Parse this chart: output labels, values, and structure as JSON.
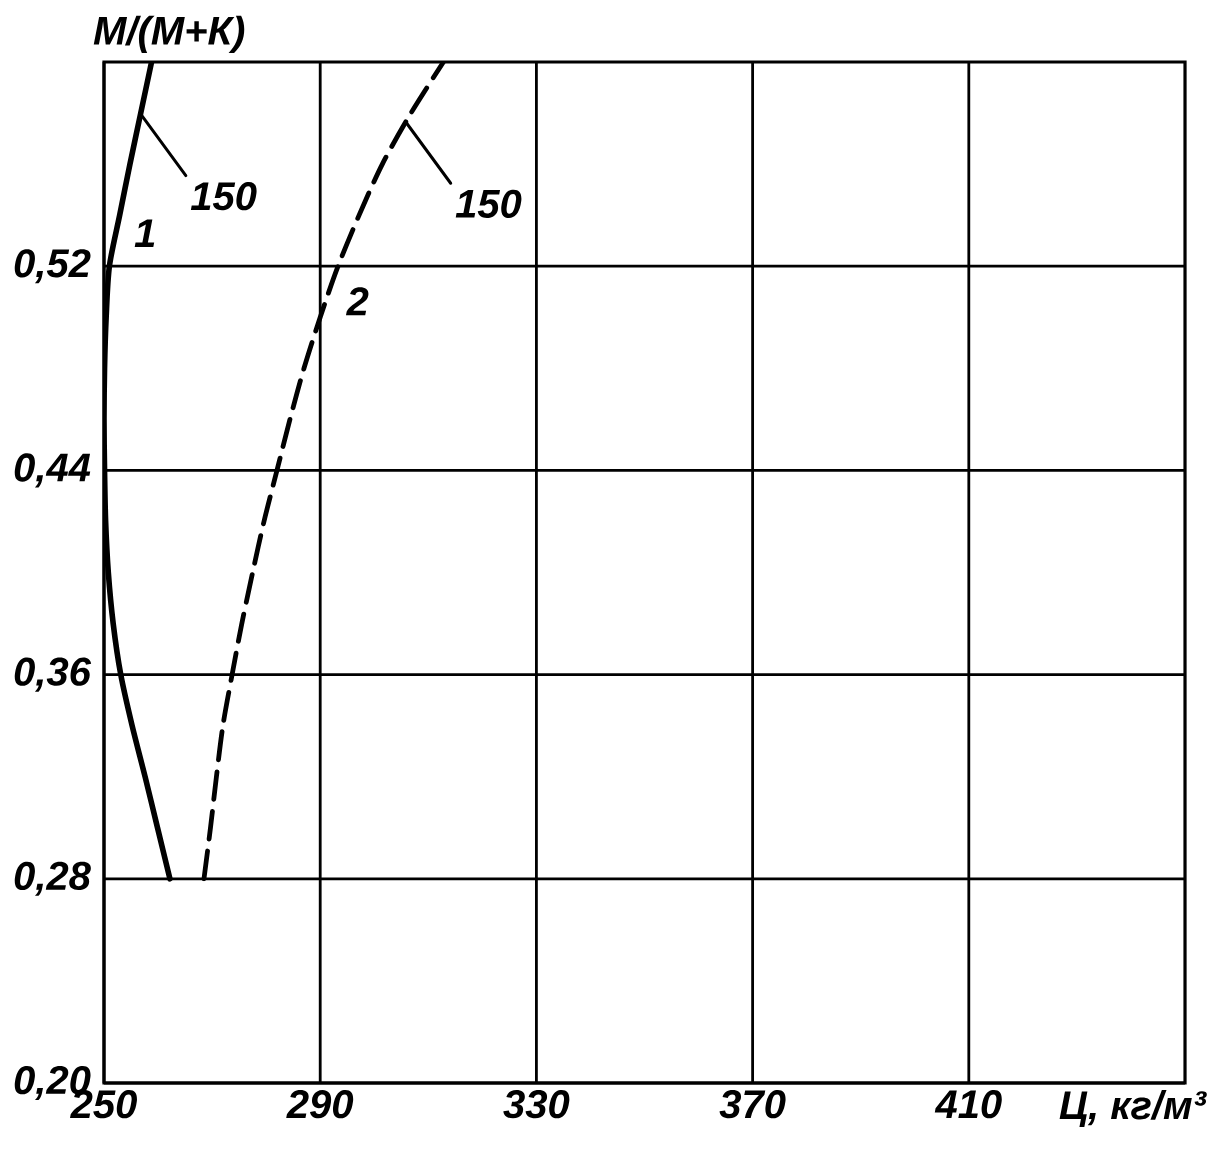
{
  "chart_data": {
    "type": "line",
    "xlabel": "Ц, кг/м³",
    "ylabel": "М/(М+К)",
    "xlim": [
      250,
      450
    ],
    "ylim": [
      0.2,
      0.6
    ],
    "xticks": [
      250,
      290,
      330,
      370,
      410
    ],
    "yticks": [
      {
        "value": 0.2,
        "label": "0,20"
      },
      {
        "value": 0.28,
        "label": "0,28"
      },
      {
        "value": 0.36,
        "label": "0,36"
      },
      {
        "value": 0.44,
        "label": "0,44"
      },
      {
        "value": 0.52,
        "label": "0,52"
      }
    ],
    "grid": true,
    "series": [
      {
        "name": "1",
        "color": "#000000",
        "line_style": "solid",
        "x": [
          262.2,
          259.9,
          257.6,
          255.2,
          253.1,
          251.7,
          250.8,
          250.3,
          250.1,
          250,
          250.1,
          250.4,
          251,
          252.9,
          254.8,
          256.8,
          258.8
        ],
        "values": [
          0.28,
          0.3,
          0.32,
          0.34,
          0.36,
          0.38,
          0.4,
          0.42,
          0.44,
          0.46,
          0.48,
          0.5,
          0.52,
          0.54,
          0.56,
          0.58,
          0.6
        ]
      },
      {
        "name": "2",
        "color": "#000000",
        "line_style": "dashed",
        "x": [
          268.5,
          269.7,
          270.8,
          272,
          273.7,
          275.5,
          277.5,
          279.6,
          282,
          284.4,
          287,
          290,
          293.3,
          297.2,
          301.5,
          306.8,
          312.8
        ],
        "values": [
          0.28,
          0.3,
          0.32,
          0.34,
          0.36,
          0.38,
          0.4,
          0.42,
          0.44,
          0.46,
          0.48,
          0.5,
          0.52,
          0.54,
          0.56,
          0.58,
          0.6
        ]
      }
    ],
    "annotations": [
      {
        "text": "150",
        "x": 257,
        "y": 0.579
      },
      {
        "text": "150",
        "x": 306,
        "y": 0.576
      }
    ]
  }
}
